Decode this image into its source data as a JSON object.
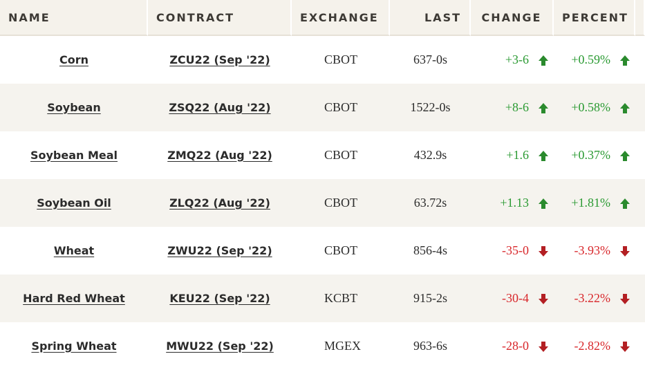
{
  "headers": {
    "name": "NAME",
    "contract": "CONTRACT",
    "exchange": "EXCHANGE",
    "last": "LAST",
    "change": "CHANGE",
    "percent": "PERCENT"
  },
  "rows": [
    {
      "name": "Corn",
      "contract": "ZCU22 (Sep '22)",
      "exchange": "CBOT",
      "last": "637-0s",
      "change": "+3-6",
      "percent": "+0.59%",
      "direction": "up"
    },
    {
      "name": "Soybean",
      "contract": "ZSQ22 (Aug '22)",
      "exchange": "CBOT",
      "last": "1522-0s",
      "change": "+8-6",
      "percent": "+0.58%",
      "direction": "up"
    },
    {
      "name": "Soybean Meal",
      "contract": "ZMQ22 (Aug '22)",
      "exchange": "CBOT",
      "last": "432.9s",
      "change": "+1.6",
      "percent": "+0.37%",
      "direction": "up"
    },
    {
      "name": "Soybean Oil",
      "contract": "ZLQ22 (Aug '22)",
      "exchange": "CBOT",
      "last": "63.72s",
      "change": "+1.13",
      "percent": "+1.81%",
      "direction": "up"
    },
    {
      "name": "Wheat",
      "contract": "ZWU22 (Sep '22)",
      "exchange": "CBOT",
      "last": "856-4s",
      "change": "-35-0",
      "percent": "-3.93%",
      "direction": "down"
    },
    {
      "name": "Hard Red Wheat",
      "contract": "KEU22 (Sep '22)",
      "exchange": "KCBT",
      "last": "915-2s",
      "change": "-30-4",
      "percent": "-3.22%",
      "direction": "down"
    },
    {
      "name": "Spring Wheat",
      "contract": "MWU22 (Sep '22)",
      "exchange": "MGEX",
      "last": "963-6s",
      "change": "-28-0",
      "percent": "-2.82%",
      "direction": "down"
    }
  ],
  "colors": {
    "up": "#2a9a32",
    "down": "#d8262a",
    "header_bg": "#f5f2eb",
    "row_alt_bg": "#f5f3ee"
  },
  "icons": {
    "up": "arrow-up-icon",
    "down": "arrow-down-icon"
  }
}
